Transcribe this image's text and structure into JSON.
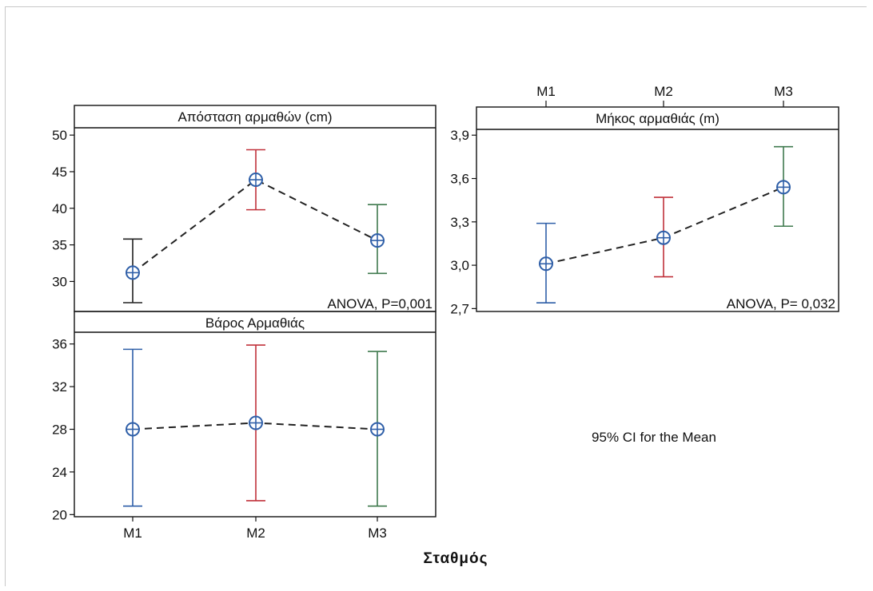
{
  "figure": {
    "xlabel": "Σταθμός",
    "note": "95% CI for the Mean"
  },
  "colors": {
    "M1": "#2f5fa8",
    "M2": "#c0303a",
    "M3": "#3f7a4e",
    "M1_apostasi": "#222222",
    "mean_marker": "#2f5fa8",
    "connector": "#222222"
  },
  "chart_data": [
    {
      "type": "interval",
      "title": "Απόσταση αρμαθών (cm)",
      "categories": [
        "M1",
        "M2",
        "M3"
      ],
      "mean": [
        31.2,
        43.9,
        35.6
      ],
      "lower": [
        27.1,
        39.8,
        31.1
      ],
      "upper": [
        35.8,
        48.0,
        40.5
      ],
      "yticks": [
        30,
        35,
        40,
        45,
        50
      ],
      "ylim": [
        25.9,
        51.0
      ],
      "show_xticks": false,
      "annotation": "ANOVA, P=0,001"
    },
    {
      "type": "interval",
      "title": "Μήκος αρμαθιάς (m)",
      "categories": [
        "M1",
        "M2",
        "M3"
      ],
      "mean": [
        3.01,
        3.19,
        3.54
      ],
      "lower": [
        2.74,
        2.92,
        3.27
      ],
      "upper": [
        3.29,
        3.47,
        3.82
      ],
      "yticks": [
        "2,7",
        "3,0",
        "3,3",
        "3,6",
        "3,9"
      ],
      "ytick_values": [
        2.7,
        3.0,
        3.3,
        3.6,
        3.9
      ],
      "ylim": [
        2.68,
        3.94
      ],
      "xticks_position": "top",
      "annotation": "ANOVA, P= 0,032"
    },
    {
      "type": "interval",
      "title": "Βάρος Αρμαθιάς",
      "categories": [
        "M1",
        "M2",
        "M3"
      ],
      "mean": [
        28.0,
        28.6,
        28.0
      ],
      "lower": [
        20.8,
        21.3,
        20.8
      ],
      "upper": [
        35.5,
        35.9,
        35.3
      ],
      "yticks": [
        20,
        24,
        28,
        32,
        36
      ],
      "ylim": [
        19.8,
        37.1
      ],
      "xticks_position": "bottom",
      "annotation": ""
    }
  ]
}
